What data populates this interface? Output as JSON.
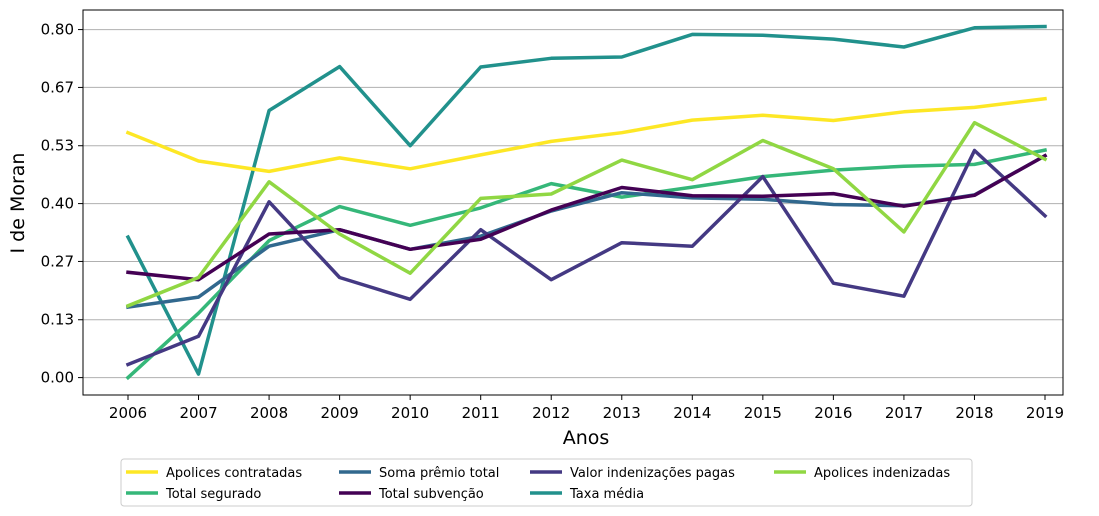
{
  "chart_data": {
    "type": "line",
    "title": "",
    "xlabel": "Anos",
    "ylabel": "I de Moran",
    "x": [
      "2006",
      "2007",
      "2008",
      "2009",
      "2010",
      "2011",
      "2012",
      "2013",
      "2014",
      "2015",
      "2016",
      "2017",
      "2018",
      "2019"
    ],
    "yticks": [
      "0.00",
      "0.13",
      "0.27",
      "0.40",
      "0.53",
      "0.67",
      "0.80"
    ],
    "ytick_values": [
      0.0,
      0.133,
      0.267,
      0.4,
      0.533,
      0.667,
      0.8
    ],
    "ylim": [
      -0.04,
      0.845
    ],
    "grid": "horizontal",
    "legend_position": "bottom",
    "series": [
      {
        "name": "Apolices contratadas",
        "color": "#fde725",
        "values": [
          0.563,
          0.498,
          0.474,
          0.505,
          0.48,
          0.512,
          0.543,
          0.563,
          0.592,
          0.603,
          0.591,
          0.611,
          0.621,
          0.641
        ]
      },
      {
        "name": "Total segurado",
        "color": "#35b779",
        "values": [
          0.0,
          0.148,
          0.315,
          0.393,
          0.35,
          0.39,
          0.446,
          0.415,
          0.438,
          0.462,
          0.477,
          0.486,
          0.49,
          0.523
        ]
      },
      {
        "name": "Soma prêmio total",
        "color": "#31688e",
        "values": [
          0.162,
          0.185,
          0.302,
          0.34,
          0.295,
          0.325,
          0.383,
          0.425,
          0.413,
          0.41,
          0.398,
          0.395,
          0.42,
          0.51
        ]
      },
      {
        "name": "Total subvenção",
        "color": "#440154",
        "values": [
          0.242,
          0.225,
          0.33,
          0.34,
          0.295,
          0.318,
          0.385,
          0.437,
          0.418,
          0.417,
          0.423,
          0.394,
          0.419,
          0.51
        ]
      },
      {
        "name": "Valor indenizações pagas",
        "color": "#443983",
        "values": [
          0.03,
          0.095,
          0.404,
          0.23,
          0.18,
          0.34,
          0.225,
          0.31,
          0.302,
          0.462,
          0.217,
          0.187,
          0.522,
          0.372
        ]
      },
      {
        "name": "Taxa média",
        "color": "#21918c",
        "values": [
          0.323,
          0.008,
          0.614,
          0.715,
          0.533,
          0.714,
          0.734,
          0.737,
          0.789,
          0.787,
          0.778,
          0.76,
          0.804,
          0.807
        ]
      },
      {
        "name": "Apolices indenizadas",
        "color": "#90d743",
        "values": [
          0.165,
          0.23,
          0.45,
          0.33,
          0.24,
          0.412,
          0.422,
          0.5,
          0.455,
          0.545,
          0.48,
          0.335,
          0.586,
          0.502
        ]
      }
    ],
    "legend_order": [
      "Apolices contratadas",
      "Total segurado",
      "Soma prêmio total",
      "Total subvenção",
      "Valor indenizações pagas",
      "Taxa média",
      "Apolices indenizadas"
    ]
  }
}
